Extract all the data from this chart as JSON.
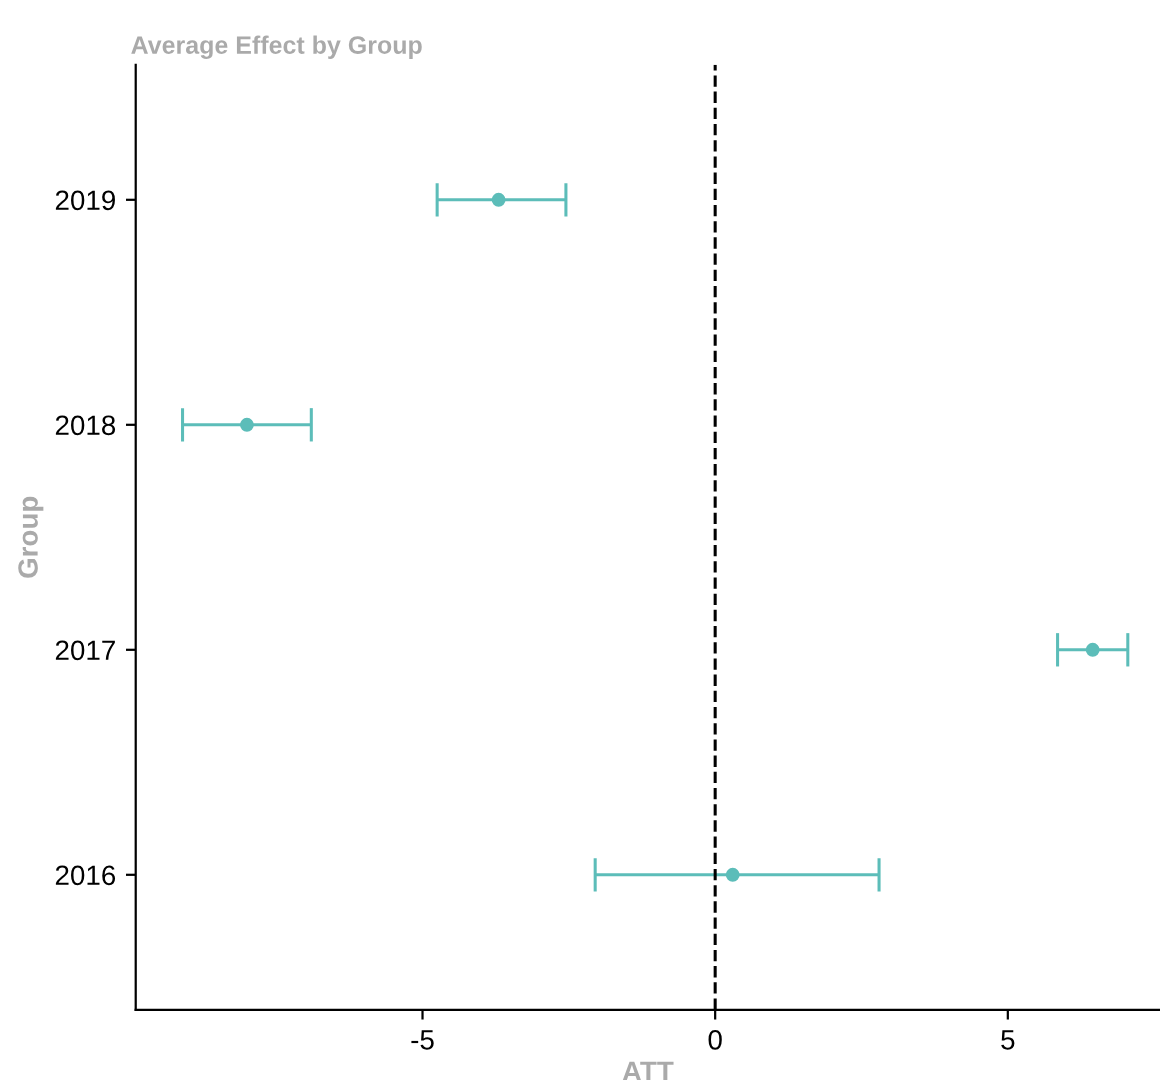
{
  "chart_data": {
    "type": "scatter",
    "orientation": "horizontal",
    "title": "Average Effect by Group",
    "xlabel": "ATT",
    "ylabel": "Group",
    "categories": [
      "2019",
      "2018",
      "2017",
      "2016"
    ],
    "color": "#5cbdb9",
    "values": [
      -3.7,
      -8.0,
      6.45,
      0.3
    ],
    "errors": [
      [
        -4.75,
        -2.55
      ],
      [
        -9.1,
        -6.9
      ],
      [
        5.85,
        7.05
      ],
      [
        -2.05,
        2.8
      ]
    ],
    "xlim": [
      -9.9,
      7.6
    ],
    "xticks": [
      -5,
      0,
      5
    ],
    "grid": false,
    "marker": "circle",
    "ref_lines": [
      {
        "axis": "x",
        "value": 0,
        "color": "#000000",
        "line_style": "dashed"
      }
    ]
  }
}
